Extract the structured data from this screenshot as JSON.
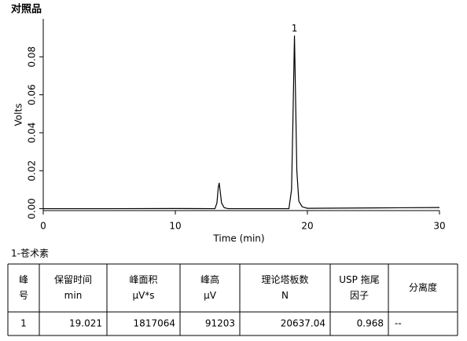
{
  "title": "对照品",
  "chart_data": {
    "type": "line",
    "xlabel": "Time (min)",
    "ylabel": "Volts",
    "series": [
      {
        "color": "#000000",
        "x": [
          0,
          5,
          10,
          13.0,
          13.15,
          13.25,
          13.32,
          13.4,
          13.5,
          13.7,
          14,
          18.6,
          18.8,
          18.9,
          19.021,
          19.1,
          19.2,
          19.35,
          19.6,
          20,
          25,
          30
        ],
        "values": [
          0,
          0,
          0.0001,
          0,
          0.003,
          0.011,
          0.0136,
          0.009,
          0.003,
          0.0005,
          0,
          0,
          0.01,
          0.045,
          0.0912,
          0.06,
          0.02,
          0.004,
          0.001,
          0.0002,
          0.0004,
          0.0006
        ]
      }
    ],
    "annotations": [
      {
        "text": "1",
        "x": 19.021,
        "y": 0.0912
      }
    ],
    "xlim": [
      0,
      30
    ],
    "xticks": [
      0,
      10,
      20,
      30
    ],
    "ylim": [
      -0.001,
      0.1
    ],
    "yticks": [
      {
        "value": 0,
        "label": "0.00"
      },
      {
        "value": 0.02,
        "label": "0.02"
      },
      {
        "value": 0.04,
        "label": "0.04"
      },
      {
        "value": 0.06,
        "label": "0.06"
      },
      {
        "value": 0.08,
        "label": "0.08"
      }
    ]
  },
  "table": {
    "caption": "1-苍术素",
    "header": [
      [
        "峰",
        "号"
      ],
      [
        "保留时间",
        "min"
      ],
      [
        "峰面积",
        "µV*s"
      ],
      [
        "峰高",
        "µV"
      ],
      [
        "理论塔板数",
        "N"
      ],
      [
        "USP 拖尾",
        "因子"
      ],
      [
        "分离度"
      ]
    ],
    "rows": [
      [
        1,
        19.021,
        1817064,
        91203,
        20637.04,
        0.968,
        "--"
      ]
    ]
  }
}
